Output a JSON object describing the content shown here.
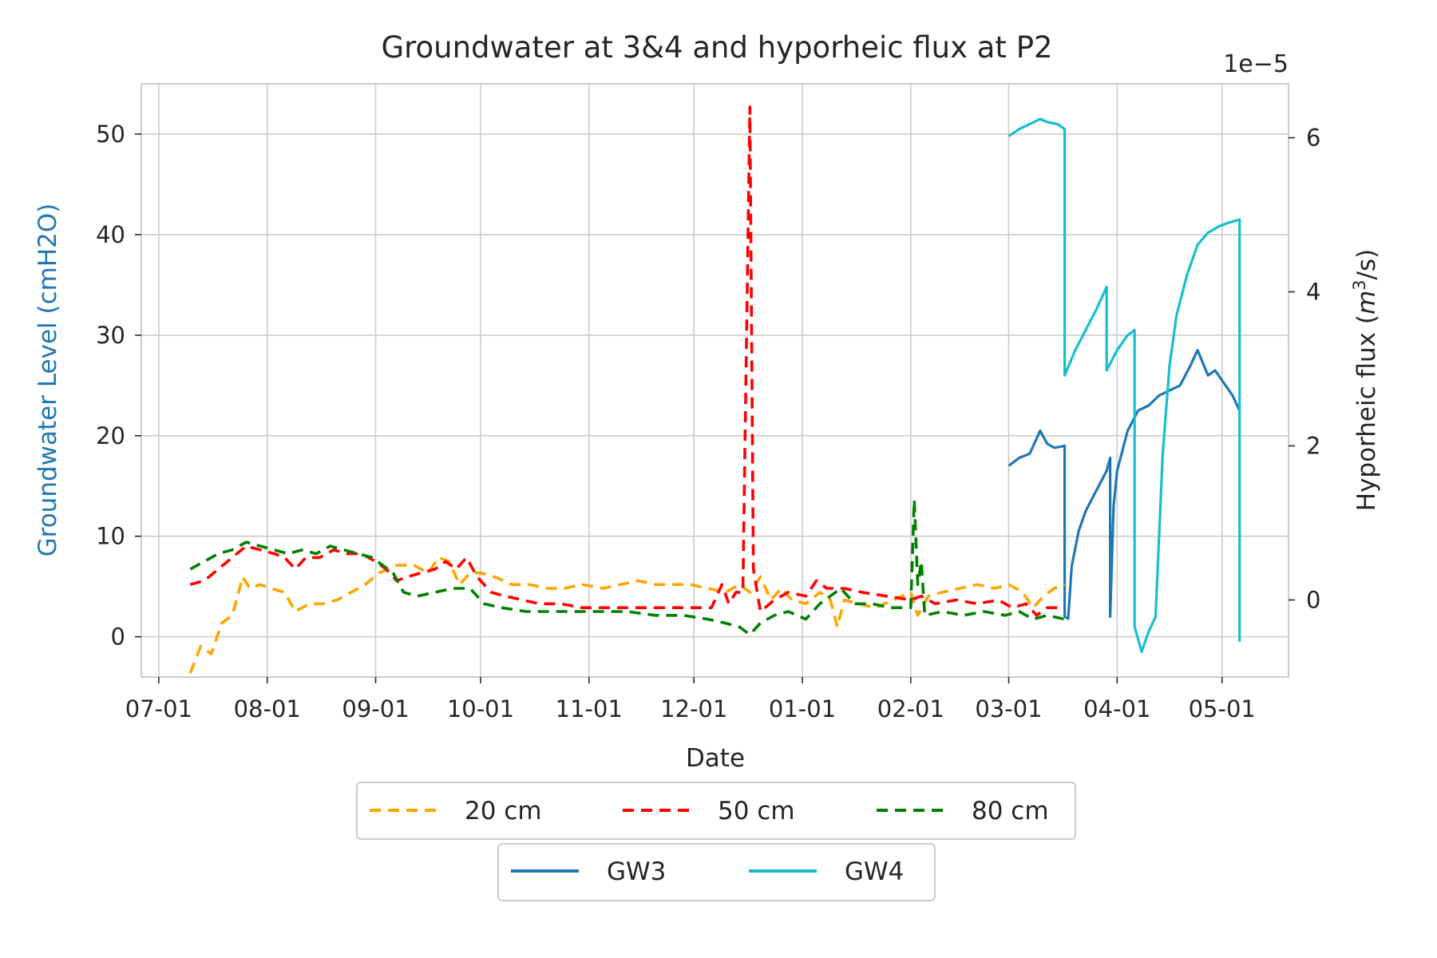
{
  "chart_data": {
    "type": "line",
    "title": "Groundwater at 3&4 and hyporheic flux at P2",
    "xlabel": "Date",
    "ylabel_left": "Groundwater Level (cmH2O)",
    "ylabel_right_text": "Hyporheic flux (",
    "ylabel_right_unit_base": "m",
    "ylabel_right_unit_exp": "3",
    "ylabel_right_unit_tail": "/s)",
    "right_axis_multiplier": "1e−5",
    "xlim": [
      "2021-06-26",
      "2022-05-20"
    ],
    "x_ticks": [
      {
        "date": "2021-07-01",
        "label": "07-01"
      },
      {
        "date": "2021-08-01",
        "label": "08-01"
      },
      {
        "date": "2021-09-01",
        "label": "09-01"
      },
      {
        "date": "2021-10-01",
        "label": "10-01"
      },
      {
        "date": "2021-11-01",
        "label": "11-01"
      },
      {
        "date": "2021-12-01",
        "label": "12-01"
      },
      {
        "date": "2022-01-01",
        "label": "01-01"
      },
      {
        "date": "2022-02-01",
        "label": "02-01"
      },
      {
        "date": "2022-03-01",
        "label": "03-01"
      },
      {
        "date": "2022-04-01",
        "label": "04-01"
      },
      {
        "date": "2022-05-01",
        "label": "05-01"
      }
    ],
    "ylim_left": [
      -4,
      55
    ],
    "y_ticks_left": [
      0,
      10,
      20,
      30,
      40,
      50
    ],
    "ylim_right": [
      -1.0,
      6.7
    ],
    "y_ticks_right": [
      0,
      2,
      4,
      6
    ],
    "grid": true,
    "legend_placement": "below the plot, two boxes",
    "series": [
      {
        "name": "GW3",
        "axis": "left",
        "color": "#1f77b4",
        "style": "solid",
        "points": [
          [
            "2022-03-01",
            17
          ],
          [
            "2022-03-04",
            17.8
          ],
          [
            "2022-03-07",
            18.2
          ],
          [
            "2022-03-10",
            20.5
          ],
          [
            "2022-03-12",
            19.2
          ],
          [
            "2022-03-14",
            18.8
          ],
          [
            "2022-03-17",
            19.0
          ],
          [
            "2022-03-17",
            2
          ],
          [
            "2022-03-18",
            1.8
          ],
          [
            "2022-03-19",
            7
          ],
          [
            "2022-03-21",
            10.5
          ],
          [
            "2022-03-23",
            12.5
          ],
          [
            "2022-03-26",
            14.5
          ],
          [
            "2022-03-29",
            16.5
          ],
          [
            "2022-03-30",
            17.8
          ],
          [
            "2022-03-30",
            2
          ],
          [
            "2022-03-31",
            13
          ],
          [
            "2022-04-01",
            16.5
          ],
          [
            "2022-04-04",
            20.5
          ],
          [
            "2022-04-07",
            22.5
          ],
          [
            "2022-04-10",
            23.0
          ],
          [
            "2022-04-13",
            24.0
          ],
          [
            "2022-04-16",
            24.5
          ],
          [
            "2022-04-19",
            25.0
          ],
          [
            "2022-04-22",
            27.0
          ],
          [
            "2022-04-24",
            28.5
          ],
          [
            "2022-04-27",
            26.0
          ],
          [
            "2022-04-29",
            26.5
          ],
          [
            "2022-05-01",
            25.5
          ],
          [
            "2022-05-04",
            24.0
          ],
          [
            "2022-05-06",
            22.5
          ]
        ]
      },
      {
        "name": "GW4",
        "axis": "left",
        "color": "#17becf",
        "style": "solid",
        "points": [
          [
            "2022-03-01",
            49.8
          ],
          [
            "2022-03-04",
            50.5
          ],
          [
            "2022-03-07",
            51.0
          ],
          [
            "2022-03-10",
            51.5
          ],
          [
            "2022-03-12",
            51.2
          ],
          [
            "2022-03-15",
            51.0
          ],
          [
            "2022-03-17",
            50.5
          ],
          [
            "2022-03-17",
            26
          ],
          [
            "2022-03-20",
            28.5
          ],
          [
            "2022-03-23",
            30.5
          ],
          [
            "2022-03-26",
            32.5
          ],
          [
            "2022-03-29",
            34.8
          ],
          [
            "2022-03-29",
            26.5
          ],
          [
            "2022-04-01",
            28.5
          ],
          [
            "2022-04-04",
            30.0
          ],
          [
            "2022-04-06",
            30.5
          ],
          [
            "2022-04-06",
            1.0
          ],
          [
            "2022-04-08",
            -1.5
          ],
          [
            "2022-04-10",
            0.5
          ],
          [
            "2022-04-12",
            2.0
          ],
          [
            "2022-04-14",
            18.0
          ],
          [
            "2022-04-16",
            27.0
          ],
          [
            "2022-04-18",
            32.0
          ],
          [
            "2022-04-21",
            36.0
          ],
          [
            "2022-04-24",
            39.0
          ],
          [
            "2022-04-27",
            40.2
          ],
          [
            "2022-04-30",
            40.8
          ],
          [
            "2022-05-03",
            41.2
          ],
          [
            "2022-05-06",
            41.5
          ],
          [
            "2022-05-06",
            -0.5
          ]
        ]
      },
      {
        "name": "20 cm",
        "axis": "right",
        "color": "#ffa500",
        "style": "dashed",
        "points": [
          [
            "2021-07-10",
            -0.95
          ],
          [
            "2021-07-13",
            -0.6
          ],
          [
            "2021-07-16",
            -0.7
          ],
          [
            "2021-07-19",
            -0.3
          ],
          [
            "2021-07-22",
            -0.2
          ],
          [
            "2021-07-25",
            0.3
          ],
          [
            "2021-07-27",
            0.15
          ],
          [
            "2021-07-30",
            0.2
          ],
          [
            "2021-08-02",
            0.15
          ],
          [
            "2021-08-06",
            0.1
          ],
          [
            "2021-08-09",
            -0.15
          ],
          [
            "2021-08-13",
            -0.05
          ],
          [
            "2021-08-17",
            -0.05
          ],
          [
            "2021-08-21",
            0.0
          ],
          [
            "2021-08-25",
            0.1
          ],
          [
            "2021-08-29",
            0.2
          ],
          [
            "2021-09-02",
            0.35
          ],
          [
            "2021-09-07",
            0.45
          ],
          [
            "2021-09-12",
            0.45
          ],
          [
            "2021-09-16",
            0.35
          ],
          [
            "2021-09-19",
            0.55
          ],
          [
            "2021-09-22",
            0.5
          ],
          [
            "2021-09-25",
            0.2
          ],
          [
            "2021-09-28",
            0.35
          ],
          [
            "2021-10-01",
            0.35
          ],
          [
            "2021-10-05",
            0.3
          ],
          [
            "2021-10-10",
            0.2
          ],
          [
            "2021-10-15",
            0.2
          ],
          [
            "2021-10-20",
            0.15
          ],
          [
            "2021-10-25",
            0.15
          ],
          [
            "2021-10-30",
            0.2
          ],
          [
            "2021-11-05",
            0.15
          ],
          [
            "2021-11-10",
            0.2
          ],
          [
            "2021-11-15",
            0.25
          ],
          [
            "2021-11-20",
            0.2
          ],
          [
            "2021-11-25",
            0.2
          ],
          [
            "2021-11-30",
            0.2
          ],
          [
            "2021-12-05",
            0.15
          ],
          [
            "2021-12-10",
            0.1
          ],
          [
            "2021-12-14",
            0.2
          ],
          [
            "2021-12-17",
            0.1
          ],
          [
            "2021-12-20",
            0.3
          ],
          [
            "2021-12-23",
            0.0
          ],
          [
            "2021-12-26",
            0.15
          ],
          [
            "2021-12-29",
            0.0
          ],
          [
            "2022-01-02",
            -0.05
          ],
          [
            "2022-01-06",
            0.1
          ],
          [
            "2022-01-09",
            0.0
          ],
          [
            "2022-01-11",
            -0.35
          ],
          [
            "2022-01-13",
            0.0
          ],
          [
            "2022-01-17",
            -0.05
          ],
          [
            "2022-01-22",
            -0.1
          ],
          [
            "2022-01-27",
            0.0
          ],
          [
            "2022-02-01",
            0.1
          ],
          [
            "2022-02-03",
            -0.2
          ],
          [
            "2022-02-06",
            0.05
          ],
          [
            "2022-02-10",
            0.1
          ],
          [
            "2022-02-15",
            0.15
          ],
          [
            "2022-02-20",
            0.2
          ],
          [
            "2022-02-25",
            0.15
          ],
          [
            "2022-03-01",
            0.2
          ],
          [
            "2022-03-05",
            0.1
          ],
          [
            "2022-03-08",
            -0.1
          ],
          [
            "2022-03-11",
            0.05
          ],
          [
            "2022-03-14",
            0.15
          ],
          [
            "2022-03-17",
            0.2
          ]
        ]
      },
      {
        "name": "50 cm",
        "axis": "right",
        "color": "#ff0000",
        "style": "dashed",
        "points": [
          [
            "2021-07-10",
            0.2
          ],
          [
            "2021-07-14",
            0.25
          ],
          [
            "2021-07-18",
            0.4
          ],
          [
            "2021-07-22",
            0.55
          ],
          [
            "2021-07-26",
            0.7
          ],
          [
            "2021-07-30",
            0.65
          ],
          [
            "2021-08-03",
            0.6
          ],
          [
            "2021-08-06",
            0.55
          ],
          [
            "2021-08-09",
            0.4
          ],
          [
            "2021-08-12",
            0.55
          ],
          [
            "2021-08-16",
            0.55
          ],
          [
            "2021-08-20",
            0.65
          ],
          [
            "2021-08-24",
            0.6
          ],
          [
            "2021-08-28",
            0.6
          ],
          [
            "2021-09-01",
            0.5
          ],
          [
            "2021-09-04",
            0.4
          ],
          [
            "2021-09-07",
            0.25
          ],
          [
            "2021-09-10",
            0.3
          ],
          [
            "2021-09-14",
            0.35
          ],
          [
            "2021-09-18",
            0.4
          ],
          [
            "2021-09-21",
            0.5
          ],
          [
            "2021-09-24",
            0.4
          ],
          [
            "2021-09-27",
            0.55
          ],
          [
            "2021-09-30",
            0.3
          ],
          [
            "2021-10-04",
            0.1
          ],
          [
            "2021-10-08",
            0.05
          ],
          [
            "2021-10-13",
            0.0
          ],
          [
            "2021-10-18",
            -0.05
          ],
          [
            "2021-10-24",
            -0.05
          ],
          [
            "2021-10-30",
            -0.1
          ],
          [
            "2021-11-05",
            -0.1
          ],
          [
            "2021-11-12",
            -0.1
          ],
          [
            "2021-11-18",
            -0.1
          ],
          [
            "2021-11-25",
            -0.1
          ],
          [
            "2021-12-01",
            -0.1
          ],
          [
            "2021-12-06",
            -0.1
          ],
          [
            "2021-12-09",
            0.2
          ],
          [
            "2021-12-11",
            -0.05
          ],
          [
            "2021-12-13",
            0.1
          ],
          [
            "2021-12-15",
            0.1
          ],
          [
            "2021-12-17",
            6.4
          ],
          [
            "2021-12-18",
            0.4
          ],
          [
            "2021-12-20",
            -0.15
          ],
          [
            "2021-12-24",
            0.0
          ],
          [
            "2021-12-28",
            0.1
          ],
          [
            "2022-01-02",
            0.05
          ],
          [
            "2022-01-05",
            0.25
          ],
          [
            "2022-01-08",
            0.15
          ],
          [
            "2022-01-13",
            0.15
          ],
          [
            "2022-01-18",
            0.1
          ],
          [
            "2022-01-25",
            0.05
          ],
          [
            "2022-02-01",
            0.0
          ],
          [
            "2022-02-04",
            0.05
          ],
          [
            "2022-02-08",
            -0.05
          ],
          [
            "2022-02-14",
            0.0
          ],
          [
            "2022-02-20",
            -0.05
          ],
          [
            "2022-02-26",
            0.0
          ],
          [
            "2022-03-02",
            -0.1
          ],
          [
            "2022-03-06",
            -0.05
          ],
          [
            "2022-03-09",
            -0.2
          ],
          [
            "2022-03-12",
            -0.1
          ],
          [
            "2022-03-17",
            -0.1
          ]
        ]
      },
      {
        "name": "80 cm",
        "axis": "right",
        "color": "#008000",
        "style": "dashed",
        "points": [
          [
            "2021-07-10",
            0.4
          ],
          [
            "2021-07-14",
            0.5
          ],
          [
            "2021-07-18",
            0.6
          ],
          [
            "2021-07-22",
            0.65
          ],
          [
            "2021-07-26",
            0.75
          ],
          [
            "2021-07-30",
            0.7
          ],
          [
            "2021-08-03",
            0.65
          ],
          [
            "2021-08-07",
            0.6
          ],
          [
            "2021-08-11",
            0.65
          ],
          [
            "2021-08-15",
            0.6
          ],
          [
            "2021-08-19",
            0.7
          ],
          [
            "2021-08-23",
            0.65
          ],
          [
            "2021-08-27",
            0.6
          ],
          [
            "2021-08-31",
            0.55
          ],
          [
            "2021-09-03",
            0.45
          ],
          [
            "2021-09-06",
            0.35
          ],
          [
            "2021-09-09",
            0.1
          ],
          [
            "2021-09-13",
            0.05
          ],
          [
            "2021-09-18",
            0.1
          ],
          [
            "2021-09-23",
            0.15
          ],
          [
            "2021-09-28",
            0.15
          ],
          [
            "2021-10-02",
            -0.05
          ],
          [
            "2021-10-07",
            -0.1
          ],
          [
            "2021-10-14",
            -0.15
          ],
          [
            "2021-10-21",
            -0.15
          ],
          [
            "2021-10-28",
            -0.15
          ],
          [
            "2021-11-04",
            -0.15
          ],
          [
            "2021-11-12",
            -0.15
          ],
          [
            "2021-11-20",
            -0.2
          ],
          [
            "2021-11-28",
            -0.2
          ],
          [
            "2021-12-05",
            -0.25
          ],
          [
            "2021-12-10",
            -0.3
          ],
          [
            "2021-12-14",
            -0.35
          ],
          [
            "2021-12-17",
            -0.45
          ],
          [
            "2021-12-20",
            -0.3
          ],
          [
            "2021-12-24",
            -0.2
          ],
          [
            "2021-12-28",
            -0.15
          ],
          [
            "2022-01-02",
            -0.25
          ],
          [
            "2022-01-06",
            -0.05
          ],
          [
            "2022-01-09",
            0.05
          ],
          [
            "2022-01-12",
            0.15
          ],
          [
            "2022-01-16",
            -0.05
          ],
          [
            "2022-01-21",
            -0.05
          ],
          [
            "2022-01-26",
            -0.1
          ],
          [
            "2022-02-01",
            -0.1
          ],
          [
            "2022-02-02",
            1.3
          ],
          [
            "2022-02-03",
            0.2
          ],
          [
            "2022-02-04",
            0.5
          ],
          [
            "2022-02-05",
            -0.2
          ],
          [
            "2022-02-10",
            -0.15
          ],
          [
            "2022-02-16",
            -0.2
          ],
          [
            "2022-02-22",
            -0.15
          ],
          [
            "2022-02-28",
            -0.2
          ],
          [
            "2022-03-04",
            -0.15
          ],
          [
            "2022-03-08",
            -0.25
          ],
          [
            "2022-03-12",
            -0.2
          ],
          [
            "2022-03-17",
            -0.25
          ]
        ]
      }
    ],
    "legend_row1": [
      "20 cm",
      "50 cm",
      "80 cm"
    ],
    "legend_row2": [
      "GW3",
      "GW4"
    ]
  }
}
